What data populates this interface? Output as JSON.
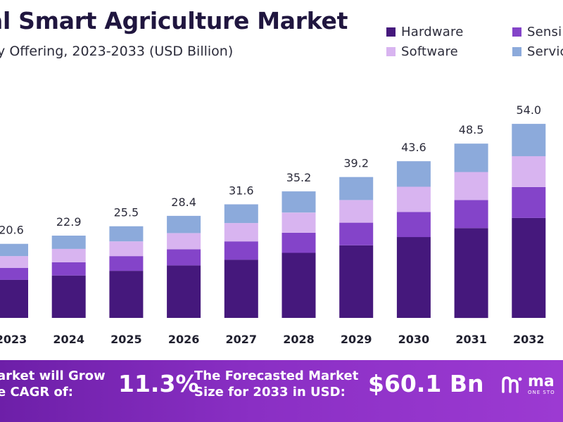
{
  "chart_data": {
    "type": "bar",
    "stacked": true,
    "title": "al Smart Agriculture Market",
    "subtitle": "by Offering, 2023-2033 (USD Billion)",
    "categories": [
      "2023",
      "2024",
      "2025",
      "2026",
      "2027",
      "2028",
      "2029",
      "2030",
      "2031",
      "2032"
    ],
    "totals": [
      "20.6",
      "22.9",
      "25.5",
      "28.4",
      "31.6",
      "35.2",
      "39.2",
      "43.6",
      "48.5",
      "54.0"
    ],
    "series": [
      {
        "name": "Hardware",
        "color": "#45187c",
        "values": [
          10.6,
          11.8,
          13.1,
          14.6,
          16.2,
          18.1,
          20.2,
          22.5,
          25.0,
          27.8
        ]
      },
      {
        "name": "Sensi",
        "color": "#8444c9",
        "values": [
          3.3,
          3.7,
          4.1,
          4.5,
          5.1,
          5.6,
          6.3,
          7.0,
          7.8,
          8.6
        ]
      },
      {
        "name": "Software",
        "color": "#d8b4f0",
        "values": [
          3.3,
          3.7,
          4.1,
          4.5,
          5.1,
          5.6,
          6.3,
          7.0,
          7.8,
          8.6
        ]
      },
      {
        "name": "Servic",
        "color": "#8caadb",
        "values": [
          3.4,
          3.7,
          4.2,
          4.8,
          5.2,
          5.9,
          6.4,
          7.1,
          7.9,
          9.0
        ]
      }
    ],
    "ylim": [
      0,
      60
    ],
    "grid": false,
    "legend": "top-right"
  },
  "banner": {
    "cagr_text_line1": "arket will Grow",
    "cagr_text_line2": "e CAGR of:",
    "cagr_value": "11.3%",
    "forecast_text_line1": "The Forecasted Market",
    "forecast_text_line2": "Size for 2033 in USD:",
    "forecast_value": "$60.1 Bn",
    "logo_name": "ma",
    "logo_tag": "ONE STO"
  }
}
